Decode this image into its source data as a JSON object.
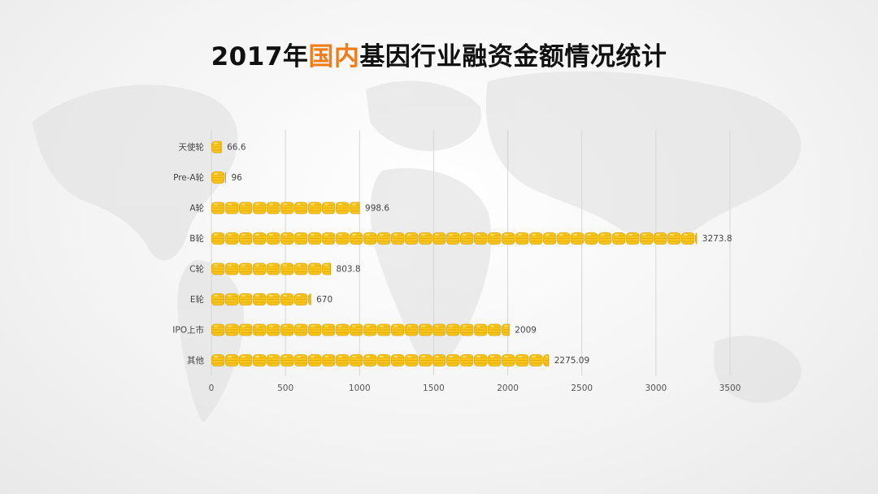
{
  "title": {
    "part1": "2017年",
    "highlight": "国内",
    "part2": "基因行业融资金额情况统计"
  },
  "colors": {
    "title_highlight": "#f07d1a",
    "coin_fill": "#f7c51e",
    "coin_edge": "#e0a400",
    "coin_shine": "#ffe680"
  },
  "chart_data": {
    "type": "bar",
    "orientation": "horizontal",
    "categories": [
      "天使轮",
      "Pre-A轮",
      "A轮",
      "B轮",
      "C轮",
      "E轮",
      "IPO上市",
      "其他"
    ],
    "values": [
      66.6,
      96,
      998.6,
      3273.8,
      803.8,
      670,
      2009,
      2275.09
    ],
    "value_labels": [
      "66.6",
      "96",
      "998.6",
      "3273.8",
      "803.8",
      "670",
      "2009",
      "2275.09"
    ],
    "xlim": [
      0,
      3500
    ],
    "xticks": [
      0,
      500,
      1000,
      1500,
      2000,
      2500,
      3000,
      3500
    ],
    "grid": true,
    "bar_style": "stacked-coins",
    "legend": "none"
  }
}
